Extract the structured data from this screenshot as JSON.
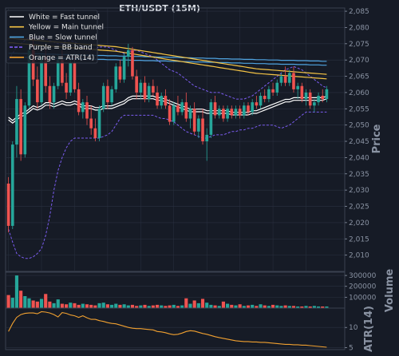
{
  "title": "ETH/USDT (15M)",
  "colors": {
    "background": "#161b26",
    "grid": "#2a3140",
    "up": "#26a69a",
    "down": "#ef5350",
    "fast": "#ffffff",
    "main": "#f5c445",
    "slow": "#4fa3e0",
    "bb": "#7b5cf0",
    "atr": "#f0a030"
  },
  "legend": [
    {
      "label": "White = Fast tunnel",
      "color": "#ffffff",
      "dash": false
    },
    {
      "label": "Yellow = Main tunnel",
      "color": "#f5c445",
      "dash": false
    },
    {
      "label": "Blue = Slow tunnel",
      "color": "#4fa3e0",
      "dash": false
    },
    {
      "label": "Purple = BB band",
      "color": "#7b5cf0",
      "dash": true
    },
    {
      "label": "Orange = ATR(14)",
      "color": "#f0a030",
      "dash": false
    }
  ],
  "chart_data": [
    {
      "type": "candlestick",
      "title": "ETH/USDT (15M)",
      "ylabel": "Price",
      "ylim": [
        2005,
        2086
      ],
      "yticks": [
        2010,
        2015,
        2020,
        2025,
        2030,
        2035,
        2040,
        2045,
        2050,
        2055,
        2060,
        2065,
        2070,
        2075,
        2080,
        2085
      ],
      "ytick_labels": [
        "2,010",
        "2,015",
        "2,020",
        "2,025",
        "2,030",
        "2,035",
        "2,040",
        "2,045",
        "2,050",
        "2,055",
        "2,060",
        "2,065",
        "2,070",
        "2,075",
        "2,080",
        "2,085"
      ],
      "grid": true,
      "candles_ohlc": [
        [
          2032.0,
          2034.0,
          2017.0,
          2019.0
        ],
        [
          2019.0,
          2045.0,
          2018.0,
          2044.0
        ],
        [
          2044.0,
          2062.0,
          2040.0,
          2058.0
        ],
        [
          2058.0,
          2061.0,
          2039.0,
          2041.0
        ],
        [
          2041.0,
          2057.0,
          2040.0,
          2056.0
        ],
        [
          2056.0,
          2074.0,
          2055.0,
          2073.0
        ],
        [
          2073.0,
          2077.0,
          2062.0,
          2064.0
        ],
        [
          2064.0,
          2068.0,
          2055.0,
          2057.0
        ],
        [
          2057.0,
          2072.0,
          2056.0,
          2071.0
        ],
        [
          2071.0,
          2074.0,
          2060.0,
          2062.0
        ],
        [
          2062.0,
          2065.0,
          2055.0,
          2057.0
        ],
        [
          2057.0,
          2063.0,
          2055.0,
          2062.0
        ],
        [
          2062.0,
          2072.0,
          2061.0,
          2070.0
        ],
        [
          2070.0,
          2073.0,
          2062.0,
          2063.0
        ],
        [
          2063.0,
          2066.0,
          2058.0,
          2060.0
        ],
        [
          2060.0,
          2070.0,
          2059.0,
          2069.0
        ],
        [
          2069.0,
          2071.0,
          2060.0,
          2061.0
        ],
        [
          2061.0,
          2063.0,
          2053.0,
          2054.0
        ],
        [
          2054.0,
          2058.0,
          2052.0,
          2057.0
        ],
        [
          2057.0,
          2059.0,
          2050.0,
          2052.0
        ],
        [
          2052.0,
          2056.0,
          2047.0,
          2049.0
        ],
        [
          2049.0,
          2052.0,
          2045.0,
          2046.0
        ],
        [
          2046.0,
          2056.0,
          2045.0,
          2055.0
        ],
        [
          2055.0,
          2063.0,
          2054.0,
          2062.0
        ],
        [
          2062.0,
          2064.0,
          2055.0,
          2057.0
        ],
        [
          2057.0,
          2062.0,
          2056.0,
          2061.0
        ],
        [
          2061.0,
          2069.0,
          2060.0,
          2068.0
        ],
        [
          2068.0,
          2070.0,
          2063.0,
          2064.0
        ],
        [
          2064.0,
          2072.0,
          2063.0,
          2071.0
        ],
        [
          2071.0,
          2075.0,
          2068.0,
          2073.0
        ],
        [
          2073.0,
          2074.0,
          2064.0,
          2065.0
        ],
        [
          2065.0,
          2067.0,
          2058.0,
          2060.0
        ],
        [
          2060.0,
          2064.0,
          2058.0,
          2063.0
        ],
        [
          2063.0,
          2065.0,
          2057.0,
          2058.0
        ],
        [
          2058.0,
          2063.0,
          2057.0,
          2062.0
        ],
        [
          2062.0,
          2064.0,
          2059.0,
          2060.0
        ],
        [
          2060.0,
          2062.0,
          2055.0,
          2056.0
        ],
        [
          2056.0,
          2060.0,
          2055.0,
          2059.0
        ],
        [
          2059.0,
          2061.0,
          2055.0,
          2056.0
        ],
        [
          2056.0,
          2058.0,
          2050.0,
          2051.0
        ],
        [
          2051.0,
          2057.0,
          2050.0,
          2056.0
        ],
        [
          2056.0,
          2059.0,
          2053.0,
          2054.0
        ],
        [
          2054.0,
          2058.0,
          2053.0,
          2057.0
        ],
        [
          2057.0,
          2060.0,
          2051.0,
          2052.0
        ],
        [
          2052.0,
          2056.0,
          2049.0,
          2055.0
        ],
        [
          2055.0,
          2057.0,
          2047.0,
          2048.0
        ],
        [
          2048.0,
          2053.0,
          2046.0,
          2052.0
        ],
        [
          2052.0,
          2055.0,
          2044.0,
          2045.0
        ],
        [
          2045.0,
          2049.0,
          2039.0,
          2047.0
        ],
        [
          2047.0,
          2058.0,
          2046.0,
          2057.0
        ],
        [
          2057.0,
          2059.0,
          2052.0,
          2053.0
        ],
        [
          2053.0,
          2056.0,
          2052.0,
          2055.0
        ],
        [
          2055.0,
          2056.0,
          2051.0,
          2052.0
        ],
        [
          2052.0,
          2056.0,
          2051.0,
          2055.0
        ],
        [
          2055.0,
          2056.0,
          2052.0,
          2053.0
        ],
        [
          2053.0,
          2056.0,
          2052.0,
          2055.0
        ],
        [
          2055.0,
          2056.0,
          2052.0,
          2053.0
        ],
        [
          2053.0,
          2057.0,
          2052.0,
          2056.0
        ],
        [
          2056.0,
          2057.0,
          2053.0,
          2054.0
        ],
        [
          2054.0,
          2058.0,
          2053.0,
          2057.0
        ],
        [
          2057.0,
          2059.0,
          2055.0,
          2056.0
        ],
        [
          2056.0,
          2060.0,
          2055.0,
          2059.0
        ],
        [
          2059.0,
          2061.0,
          2057.0,
          2058.0
        ],
        [
          2058.0,
          2062.0,
          2057.0,
          2061.0
        ],
        [
          2061.0,
          2063.0,
          2059.0,
          2060.0
        ],
        [
          2060.0,
          2064.0,
          2059.0,
          2063.0
        ],
        [
          2063.0,
          2066.0,
          2062.0,
          2065.0
        ],
        [
          2065.0,
          2068.0,
          2062.0,
          2063.0
        ],
        [
          2063.0,
          2067.0,
          2062.0,
          2066.0
        ],
        [
          2066.0,
          2068.0,
          2060.0,
          2061.0
        ],
        [
          2061.0,
          2063.0,
          2058.0,
          2062.0
        ],
        [
          2062.0,
          2063.0,
          2057.0,
          2058.0
        ],
        [
          2058.0,
          2061.0,
          2056.0,
          2060.0
        ],
        [
          2060.0,
          2061.0,
          2055.0,
          2056.0
        ],
        [
          2056.0,
          2058.0,
          2054.0,
          2057.0
        ],
        [
          2057.0,
          2060.0,
          2056.0,
          2059.0
        ],
        [
          2059.0,
          2061.0,
          2057.0,
          2058.0
        ],
        [
          2058.0,
          2062.0,
          2057.0,
          2061.0
        ]
      ],
      "fast_tunnel": [
        2052.0,
        2051.0,
        2052.0,
        2053.0,
        2053.5,
        2054.5,
        2055.5,
        2055.0,
        2055.5,
        2056.5,
        2056.5,
        2056.0,
        2056.5,
        2057.0,
        2056.5,
        2056.5,
        2057.0,
        2056.5,
        2055.5,
        2055.5,
        2055.5,
        2055.0,
        2055.0,
        2055.5,
        2055.5,
        2055.5,
        2056.0,
        2056.5,
        2057.0,
        2058.0,
        2058.5,
        2058.5,
        2058.5,
        2058.5,
        2058.5,
        2058.5,
        2058.0,
        2058.0,
        2057.5,
        2057.0,
        2056.5,
        2056.0,
        2055.5,
        2055.0,
        2054.5,
        2054.5,
        2054.5,
        2054.5,
        2054.0,
        2054.0,
        2054.0,
        2054.0,
        2054.0,
        2054.0,
        2053.5,
        2053.5,
        2053.5,
        2053.5,
        2053.5,
        2054.0,
        2054.0,
        2054.5,
        2055.0,
        2055.5,
        2056.0,
        2056.5,
        2057.0,
        2057.5,
        2057.5,
        2058.0,
        2058.0,
        2058.0,
        2058.0,
        2058.0,
        2058.0,
        2058.0,
        2058.0,
        2058.5
      ],
      "main_tunnel": [
        2076.0,
        2076.0,
        2075.8,
        2075.7,
        2075.6,
        2075.5,
        2075.4,
        2075.3,
        2075.2,
        2075.1,
        2075.0,
        2074.9,
        2074.8,
        2074.7,
        2074.6,
        2074.5,
        2074.4,
        2074.3,
        2074.2,
        2074.1,
        2074.0,
        2073.9,
        2073.8,
        2073.7,
        2073.6,
        2073.5,
        2073.4,
        2073.2,
        2073.0,
        2072.8,
        2072.6,
        2072.4,
        2072.2,
        2072.0,
        2071.8,
        2071.6,
        2071.4,
        2071.2,
        2071.0,
        2070.8,
        2070.6,
        2070.4,
        2070.2,
        2070.0,
        2069.8,
        2069.6,
        2069.4,
        2069.2,
        2069.0,
        2068.8,
        2068.6,
        2068.4,
        2068.2,
        2068.0,
        2067.8,
        2067.6,
        2067.4,
        2067.2,
        2067.0,
        2066.8,
        2066.6,
        2066.5,
        2066.4,
        2066.3,
        2066.2,
        2066.1,
        2066.0,
        2065.9,
        2065.8,
        2065.7,
        2065.6,
        2065.5,
        2065.4,
        2065.3,
        2065.2,
        2065.1,
        2065.0,
        2064.9
      ],
      "slow_tunnel": [
        2071.5,
        2071.5,
        2071.5,
        2071.4,
        2071.4,
        2071.4,
        2071.3,
        2071.3,
        2071.3,
        2071.2,
        2071.2,
        2071.2,
        2071.1,
        2071.1,
        2071.1,
        2071.0,
        2071.0,
        2071.0,
        2070.9,
        2070.9,
        2070.9,
        2070.8,
        2070.8,
        2070.8,
        2070.7,
        2070.7,
        2070.7,
        2070.6,
        2070.6,
        2070.6,
        2070.5,
        2070.5,
        2070.5,
        2070.4,
        2070.4,
        2070.4,
        2070.3,
        2070.3,
        2070.3,
        2070.2,
        2070.2,
        2070.2,
        2070.1,
        2070.1,
        2070.1,
        2070.0,
        2070.0,
        2070.0,
        2069.9,
        2069.9,
        2069.9,
        2069.8,
        2069.8,
        2069.8,
        2069.7,
        2069.7,
        2069.7,
        2069.6,
        2069.6,
        2069.6,
        2069.5,
        2069.5,
        2069.5,
        2069.4,
        2069.4,
        2069.4,
        2069.3,
        2069.3,
        2069.3,
        2069.3,
        2069.2,
        2069.2,
        2069.2,
        2069.1,
        2069.1,
        2069.1,
        2069.0,
        2069.0
      ],
      "bb_upper": [
        2070.0,
        2072.0,
        2074.0,
        2075.0,
        2076.0,
        2077.0,
        2077.0,
        2077.0,
        2077.0,
        2076.5,
        2076.0,
        2075.5,
        2075.0,
        2075.0,
        2076.0,
        2076.0,
        2075.5,
        2075.0,
        2074.0,
        2073.0,
        2073.0,
        2073.5,
        2074.0,
        2074.0,
        2074.0,
        2073.5,
        2073.0,
        2072.5,
        2072.0,
        2072.5,
        2073.0,
        2073.0,
        2072.5,
        2072.0,
        2071.5,
        2071.0,
        2070.0,
        2069.0,
        2068.0,
        2067.0,
        2066.5,
        2066.0,
        2065.0,
        2064.0,
        2063.0,
        2062.0,
        2061.5,
        2061.0,
        2060.5,
        2060.0,
        2060.0,
        2060.0,
        2059.5,
        2059.0,
        2058.5,
        2058.0,
        2058.0,
        2058.0,
        2058.5,
        2059.0,
        2060.0,
        2061.0,
        2062.0,
        2063.0,
        2064.0,
        2065.0,
        2066.0,
        2067.0,
        2067.5,
        2068.0,
        2067.5,
        2067.0,
        2066.0,
        2065.0,
        2064.0,
        2063.0,
        2062.0,
        2061.5
      ],
      "bb_lower": [
        2018.0,
        2014.0,
        2010.5,
        2009.5,
        2009.0,
        2009.0,
        2009.5,
        2010.5,
        2012.0,
        2016.0,
        2022.0,
        2030.0,
        2036.0,
        2040.0,
        2043.0,
        2045.0,
        2046.0,
        2046.0,
        2046.0,
        2046.0,
        2046.0,
        2046.0,
        2046.0,
        2046.5,
        2047.0,
        2048.0,
        2050.0,
        2052.0,
        2053.0,
        2053.0,
        2053.0,
        2053.0,
        2053.0,
        2053.0,
        2053.0,
        2053.0,
        2052.5,
        2052.0,
        2052.0,
        2051.5,
        2051.0,
        2050.0,
        2049.0,
        2048.0,
        2047.5,
        2047.0,
        2046.5,
        2046.0,
        2046.0,
        2046.5,
        2047.0,
        2047.0,
        2047.0,
        2047.5,
        2048.0,
        2048.0,
        2048.5,
        2048.5,
        2049.0,
        2049.0,
        2049.5,
        2050.0,
        2050.0,
        2050.0,
        2050.0,
        2049.5,
        2049.0,
        2049.5,
        2050.0,
        2051.0,
        2052.0,
        2053.0,
        2054.0,
        2054.0,
        2054.0,
        2054.0,
        2054.0,
        2054.0
      ]
    },
    {
      "type": "bar",
      "ylabel": "Volume",
      "ylim": [
        0,
        330000
      ],
      "yticks": [
        100000,
        200000,
        300000
      ],
      "ytick_labels": [
        "100000",
        "200000",
        "300000"
      ],
      "values": [
        120000,
        95000,
        300000,
        160000,
        110000,
        90000,
        70000,
        60000,
        85000,
        130000,
        60000,
        45000,
        80000,
        40000,
        35000,
        50000,
        45000,
        30000,
        40000,
        35000,
        30000,
        25000,
        45000,
        50000,
        35000,
        30000,
        40000,
        30000,
        35000,
        25000,
        30000,
        20000,
        25000,
        30000,
        20000,
        25000,
        30000,
        25000,
        20000,
        25000,
        30000,
        20000,
        25000,
        90000,
        40000,
        70000,
        45000,
        85000,
        50000,
        30000,
        25000,
        20000,
        60000,
        40000,
        30000,
        25000,
        35000,
        20000,
        25000,
        30000,
        20000,
        35000,
        25000,
        20000,
        30000,
        25000,
        20000,
        25000,
        20000,
        20000,
        15000,
        15000,
        20000,
        15000,
        20000,
        15000,
        15000,
        15000
      ]
    },
    {
      "type": "line",
      "ylabel": "ATR(14)",
      "ylim": [
        4.5,
        14.8
      ],
      "yticks": [
        5,
        10
      ],
      "ytick_labels": [
        "5",
        "10"
      ],
      "values": [
        9.0,
        11.0,
        12.5,
        13.2,
        13.5,
        13.6,
        13.6,
        13.4,
        13.9,
        13.8,
        13.6,
        13.2,
        12.6,
        13.7,
        13.5,
        13.1,
        12.9,
        12.5,
        12.9,
        12.4,
        12.0,
        12.0,
        11.7,
        11.5,
        11.2,
        11.0,
        10.9,
        10.6,
        10.3,
        10.0,
        9.8,
        9.7,
        9.7,
        9.6,
        9.5,
        9.4,
        9.0,
        8.9,
        8.7,
        8.4,
        8.2,
        8.3,
        8.6,
        9.0,
        9.2,
        9.1,
        8.8,
        8.5,
        8.3,
        8.0,
        7.7,
        7.5,
        7.3,
        7.1,
        6.9,
        6.7,
        6.6,
        6.5,
        6.5,
        6.4,
        6.4,
        6.3,
        6.3,
        6.2,
        6.1,
        6.0,
        5.9,
        5.8,
        5.8,
        5.7,
        5.7,
        5.6,
        5.6,
        5.5,
        5.4,
        5.3,
        5.2,
        5.1
      ]
    }
  ]
}
